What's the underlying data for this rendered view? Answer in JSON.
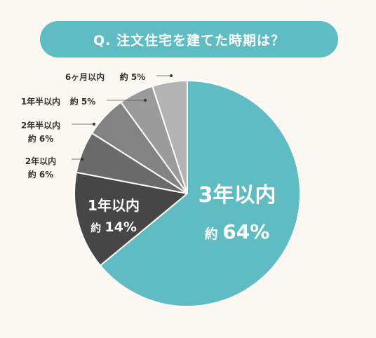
{
  "title": "Q. 注文住宅を建てた時期は？",
  "colors": {
    "background": "#fbf8f2",
    "accent": "#5fbcc3",
    "slices": [
      "#5fbcc3",
      "#464646",
      "#6a6a6a",
      "#838383",
      "#9b9b9b",
      "#b3b3b3"
    ]
  },
  "chart_data": {
    "type": "pie",
    "slices": [
      {
        "label": "3年以内",
        "prefix": "約",
        "value": 64,
        "value_text": "64%",
        "placement": "inside"
      },
      {
        "label": "1年以内",
        "prefix": "約",
        "value": 14,
        "value_text": "14%",
        "placement": "inside"
      },
      {
        "label": "2年以内",
        "prefix": "約",
        "value": 6,
        "value_text": "6%",
        "placement": "outside"
      },
      {
        "label": "2年半以内",
        "prefix": "約",
        "value": 6,
        "value_text": "6%",
        "placement": "outside"
      },
      {
        "label": "1年半以内",
        "prefix": "約",
        "value": 5,
        "value_text": "5%",
        "placement": "outside"
      },
      {
        "label": "6ヶ月以内",
        "prefix": "約",
        "value": 5,
        "value_text": "5%",
        "placement": "outside"
      }
    ]
  }
}
